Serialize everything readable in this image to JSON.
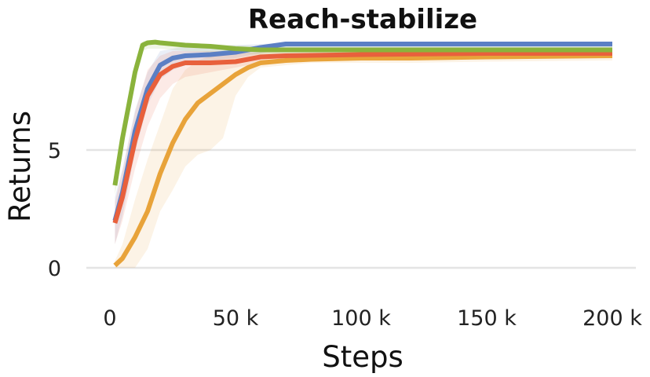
{
  "chart_data": {
    "type": "line",
    "title": "Reach-stabilize",
    "xlabel": "Steps",
    "ylabel": "Returns",
    "xlim": [
      0,
      200000
    ],
    "ylim": [
      0,
      9.3
    ],
    "xticks": [
      0,
      50000,
      100000,
      150000,
      200000
    ],
    "xtick_labels": [
      "0",
      "50 k",
      "100 k",
      "150 k",
      "200 k"
    ],
    "yticks": [
      0,
      5
    ],
    "ytick_labels": [
      "0",
      "5"
    ],
    "grid": "horizontal",
    "legend": "none",
    "series": [
      {
        "color": "#e8a33a",
        "x": [
          2000,
          5000,
          10000,
          15000,
          20000,
          25000,
          30000,
          35000,
          40000,
          45000,
          50000,
          55000,
          60000,
          70000,
          80000,
          100000,
          120000,
          150000,
          200000
        ],
        "y": [
          0.1,
          0.4,
          1.3,
          2.4,
          4.0,
          5.3,
          6.3,
          7.0,
          7.4,
          7.8,
          8.2,
          8.5,
          8.7,
          8.8,
          8.85,
          8.9,
          8.9,
          8.95,
          9.0
        ],
        "band_low": [
          0.0,
          0.0,
          0.0,
          0.8,
          2.4,
          3.3,
          4.3,
          4.8,
          5.0,
          5.5,
          7.3,
          8.1,
          8.5,
          8.6,
          8.7,
          8.7,
          8.7,
          8.75,
          8.8
        ],
        "band_high": [
          0.3,
          1.0,
          2.9,
          4.6,
          6.1,
          7.6,
          8.4,
          8.8,
          9.0,
          9.1,
          9.1,
          9.1,
          9.1,
          9.1,
          9.1,
          9.1,
          9.1,
          9.1,
          9.2
        ]
      },
      {
        "color": "#5b7fc4",
        "x": [
          2000,
          5000,
          10000,
          15000,
          20000,
          25000,
          30000,
          40000,
          50000,
          60000,
          70000,
          100000,
          150000,
          200000
        ],
        "y": [
          2.0,
          3.2,
          5.8,
          7.6,
          8.6,
          8.9,
          9.0,
          9.05,
          9.15,
          9.35,
          9.5,
          9.5,
          9.5,
          9.5
        ],
        "band_low": [
          1.0,
          2.2,
          4.9,
          6.9,
          8.0,
          8.4,
          8.6,
          8.8,
          8.9,
          9.1,
          9.3,
          9.3,
          9.3,
          9.3
        ],
        "band_high": [
          3.0,
          4.2,
          6.7,
          8.3,
          9.2,
          9.3,
          9.4,
          9.4,
          9.45,
          9.5,
          9.55,
          9.55,
          9.55,
          9.55
        ]
      },
      {
        "color": "#e8603c",
        "x": [
          2000,
          5000,
          10000,
          15000,
          20000,
          25000,
          30000,
          40000,
          50000,
          60000,
          70000,
          100000,
          150000,
          200000
        ],
        "y": [
          1.9,
          3.0,
          5.4,
          7.3,
          8.2,
          8.55,
          8.7,
          8.7,
          8.75,
          8.95,
          9.0,
          9.05,
          9.1,
          9.1
        ],
        "band_low": [
          1.0,
          2.0,
          4.2,
          6.0,
          7.2,
          7.8,
          8.1,
          8.3,
          8.5,
          8.7,
          8.8,
          8.85,
          8.9,
          8.9
        ],
        "band_high": [
          2.8,
          4.1,
          6.6,
          8.4,
          9.0,
          9.2,
          9.2,
          9.2,
          9.2,
          9.2,
          9.25,
          9.25,
          9.3,
          9.3
        ]
      },
      {
        "color": "#8ab33c",
        "x": [
          2000,
          5000,
          10000,
          13000,
          15000,
          18000,
          20000,
          25000,
          30000,
          40000,
          50000,
          60000,
          80000,
          100000,
          150000,
          200000
        ],
        "y": [
          3.5,
          5.5,
          8.3,
          9.45,
          9.55,
          9.58,
          9.55,
          9.5,
          9.45,
          9.4,
          9.3,
          9.25,
          9.25,
          9.25,
          9.25,
          9.25
        ],
        "band_low": [
          3.1,
          5.0,
          7.9,
          9.2,
          9.3,
          9.3,
          9.3,
          9.25,
          9.2,
          9.15,
          9.1,
          9.05,
          9.1,
          9.1,
          9.1,
          9.1
        ],
        "band_high": [
          3.9,
          6.0,
          8.7,
          9.6,
          9.65,
          9.65,
          9.65,
          9.6,
          9.55,
          9.5,
          9.45,
          9.4,
          9.4,
          9.4,
          9.4,
          9.4
        ]
      }
    ]
  }
}
